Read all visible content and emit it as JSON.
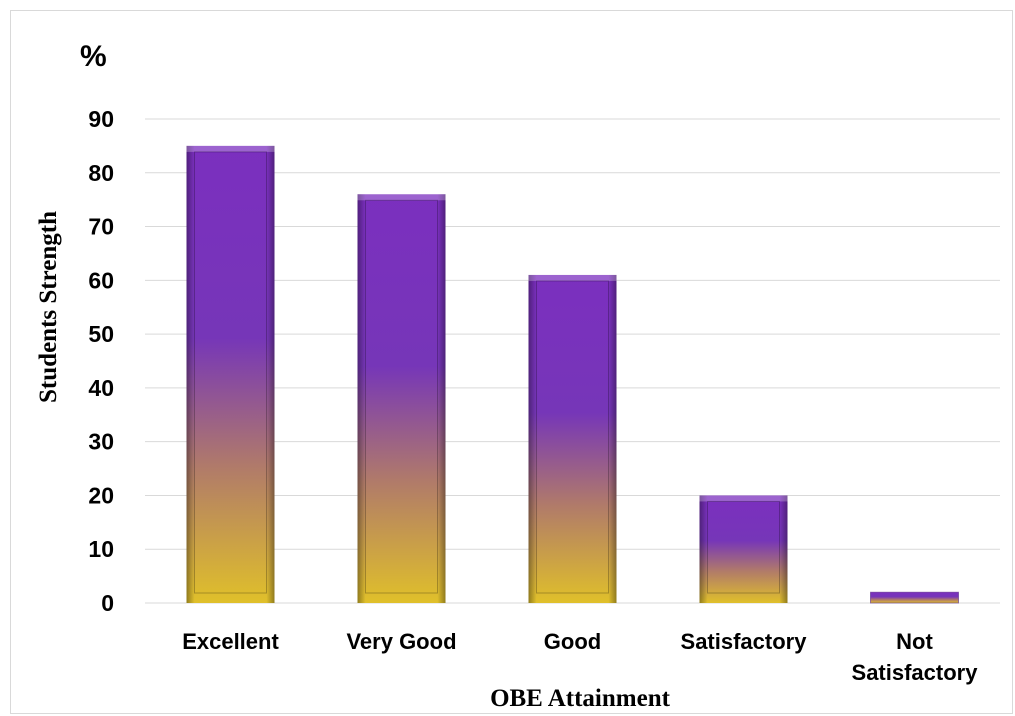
{
  "chart_data": {
    "type": "bar",
    "unit_label": "%",
    "ylabel": "Students Strength",
    "xlabel": "OBE Attainment",
    "categories": [
      [
        "Excellent"
      ],
      [
        "Very Good"
      ],
      [
        "Good"
      ],
      [
        "Satisfactory"
      ],
      [
        "Not",
        "Satisfactory"
      ]
    ],
    "values": [
      85,
      76,
      61,
      20,
      2
    ],
    "ylim": [
      0,
      90
    ],
    "yticks": [
      0,
      10,
      20,
      30,
      40,
      50,
      60,
      70,
      80,
      90
    ],
    "grid": true,
    "legend": "none",
    "colors": {
      "top": "#7b2fbf",
      "bottom": "#e0c02a",
      "grid": "#d9d9d9"
    }
  }
}
